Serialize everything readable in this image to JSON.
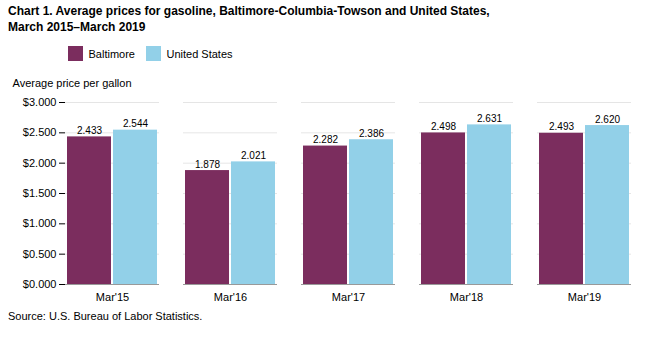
{
  "chart_data": {
    "type": "bar",
    "title": "Chart 1. Average prices for gasoline, Baltimore-Columbia-Towson  and United States,\nMarch 2015–March 2019",
    "ylabel": "Average price per gallon",
    "source": "Source: U.S. Bureau of Labor Statistics.",
    "categories": [
      "Mar'15",
      "Mar'16",
      "Mar'17",
      "Mar'18",
      "Mar'19"
    ],
    "series": [
      {
        "name": "Baltimore",
        "color": "#7B2D5E",
        "values": [
          2.433,
          1.878,
          2.282,
          2.498,
          2.493
        ],
        "value_labels": [
          "2.433",
          "1.878",
          "2.282",
          "2.498",
          "2.493"
        ]
      },
      {
        "name": "United States",
        "color": "#92D0E8",
        "values": [
          2.544,
          2.021,
          2.386,
          2.631,
          2.62
        ],
        "value_labels": [
          "2.544",
          "2.021",
          "2.386",
          "2.631",
          "2.620"
        ]
      }
    ],
    "ylim": [
      0,
      3.0
    ],
    "yticks": [
      {
        "value": 0.0,
        "label": "$0.000"
      },
      {
        "value": 0.5,
        "label": "$0.500"
      },
      {
        "value": 1.0,
        "label": "$1.000"
      },
      {
        "value": 1.5,
        "label": "$1.500"
      },
      {
        "value": 2.0,
        "label": "$2.000"
      },
      {
        "value": 2.5,
        "label": "$2.500"
      },
      {
        "value": 3.0,
        "label": "$3.000"
      }
    ],
    "grid": true,
    "legend": "top",
    "data_labels": true
  }
}
